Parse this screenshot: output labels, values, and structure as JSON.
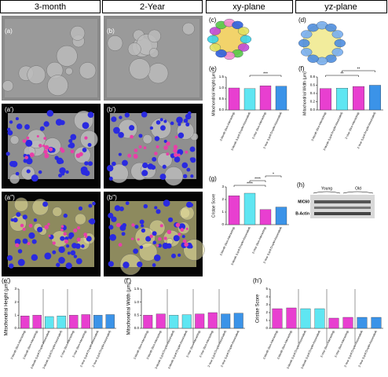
{
  "headers": [
    "3-month",
    "2-Year",
    "xy-plane",
    "yz-plane"
  ],
  "panel_labels": {
    "a": "(a)",
    "b": "(b)",
    "a1": "(a′)",
    "b1": "(b′)",
    "a2": "(a′′)",
    "b2": "(b′′)",
    "c": "(c)",
    "d": "(d)",
    "h": "(h)"
  },
  "blot": {
    "groups": [
      "Young",
      "Old"
    ],
    "rows": [
      "MIC60",
      "B-Actin"
    ]
  },
  "chart_data": [
    {
      "type": "bar",
      "label": "(e)",
      "y_label": "Mitochondrial Height (µm)",
      "categories": [
        "3-Month (Non-Interacting)",
        "3-Month (Lipid Droplet Associated)",
        "2-Year (Non-Interacting)",
        "2-Year (Lipid Droplet Associated)"
      ],
      "values": [
        1.0,
        0.97,
        1.1,
        1.08
      ],
      "colors": [
        "#e83fd0",
        "#5fe6f2",
        "#e83fd0",
        "#3b93e8"
      ],
      "ylim": [
        0,
        1.5
      ],
      "yticks": [
        {
          "value": 0,
          "label": "0.0"
        },
        {
          "value": 0.5,
          "label": "0.5"
        },
        {
          "value": 1,
          "label": "1.0"
        },
        {
          "value": 1.5,
          "label": "1.5"
        }
      ],
      "annotations": [
        "***"
      ]
    },
    {
      "type": "bar",
      "label": "(f)",
      "y_label": "Mitochondrial Width (µm)",
      "categories": [
        "3-Month (Non-Interacting)",
        "3-Month (Lipid Droplet Associated)",
        "2-Year (Non-Interacting)",
        "2-Year (Lipid Droplet Associated)"
      ],
      "values": [
        0.52,
        0.53,
        0.57,
        0.6
      ],
      "colors": [
        "#e83fd0",
        "#5fe6f2",
        "#e83fd0",
        "#3b93e8"
      ],
      "ylim": [
        0,
        0.8
      ],
      "yticks": [
        {
          "value": 0,
          "label": "0.0"
        },
        {
          "value": 0.2,
          "label": "0.2"
        },
        {
          "value": 0.4,
          "label": "0.4"
        },
        {
          "value": 0.6,
          "label": "0.6"
        },
        {
          "value": 0.8,
          "label": "0.8"
        }
      ],
      "annotations": [
        "**",
        "**"
      ]
    },
    {
      "type": "bar",
      "label": "(g)",
      "y_label": "Cristae Score",
      "categories": [
        "3-Month (Non-Interacting)",
        "3-Month (Lipid Droplet Associated)",
        "2-Year (Non-Interacting)",
        "2-Year (Lipid Droplet Associated)"
      ],
      "values": [
        2.3,
        2.5,
        1.2,
        1.4
      ],
      "colors": [
        "#e83fd0",
        "#5fe6f2",
        "#e83fd0",
        "#3b93e8"
      ],
      "ylim": [
        0,
        3
      ],
      "yticks": [
        0,
        1,
        2,
        3
      ],
      "annotations": [
        "****",
        "****",
        "*"
      ]
    },
    {
      "type": "bar",
      "label": "(e′)",
      "y_label": "Mitochondrial Height (µm)",
      "categories": [
        "3-Month (Non-Interacting)",
        "3-Month (Non-Interacting)",
        "3-Month (Lipid Droplet Associated)",
        "3-Month (Lipid Droplet Associated)",
        "2-Year (Non-Interacting)",
        "2-Year (Non-Interacting)",
        "2-Year (Lipid Droplet Associated)",
        "2-Year (Lipid Droplet Associated)"
      ],
      "values": [
        0.95,
        1.0,
        0.9,
        0.95,
        1.0,
        1.05,
        1.0,
        1.05
      ],
      "colors": [
        "#e83fd0",
        "#e83fd0",
        "#5fe6f2",
        "#5fe6f2",
        "#e83fd0",
        "#e83fd0",
        "#3b93e8",
        "#3b93e8"
      ],
      "ylim": [
        0,
        3
      ],
      "yticks": [
        0,
        1,
        2,
        3
      ],
      "annotations": []
    },
    {
      "type": "bar",
      "label": "(f′)",
      "y_label": "Mitochondrial Width (µm)",
      "categories": [
        "3-Month (Non-Interacting)",
        "3-Month (Non-Interacting)",
        "3-Month (Lipid Droplet Associated)",
        "3-Month (Lipid Droplet Associated)",
        "2-Year (Non-Interacting)",
        "2-Year (Non-Interacting)",
        "2-Year (Lipid Droplet Associated)",
        "2-Year (Lipid Droplet Associated)"
      ],
      "values": [
        0.5,
        0.55,
        0.5,
        0.52,
        0.55,
        0.6,
        0.55,
        0.58
      ],
      "colors": [
        "#e83fd0",
        "#e83fd0",
        "#5fe6f2",
        "#5fe6f2",
        "#e83fd0",
        "#e83fd0",
        "#3b93e8",
        "#3b93e8"
      ],
      "ylim": [
        0,
        1.5
      ],
      "yticks": [
        {
          "value": 0,
          "label": "0.0"
        },
        {
          "value": 0.5,
          "label": "0.5"
        },
        {
          "value": 1,
          "label": "1.0"
        },
        {
          "value": 1.5,
          "label": "1.5"
        }
      ],
      "annotations": []
    },
    {
      "type": "bar",
      "label": "(h′)",
      "y_label": "Cristae Score",
      "categories": [
        "3-Month (Non-Interacting)",
        "3-Month (Non-Interacting)",
        "3-Month (Lipid Droplet Associated)",
        "3-Month (Lipid Droplet Associated)",
        "2-Year (Non-Interacting)",
        "2-Year (Non-Interacting)",
        "2-Year (Lipid Droplet Associated)",
        "2-Year (Lipid Droplet Associated)"
      ],
      "values": [
        2.5,
        2.6,
        2.5,
        2.5,
        1.3,
        1.4,
        1.4,
        1.4
      ],
      "colors": [
        "#e83fd0",
        "#e83fd0",
        "#5fe6f2",
        "#5fe6f2",
        "#e83fd0",
        "#e83fd0",
        "#3b93e8",
        "#3b93e8"
      ],
      "ylim": [
        0,
        5
      ],
      "yticks": [
        0,
        1,
        2,
        3,
        4,
        5
      ],
      "annotations": []
    }
  ]
}
